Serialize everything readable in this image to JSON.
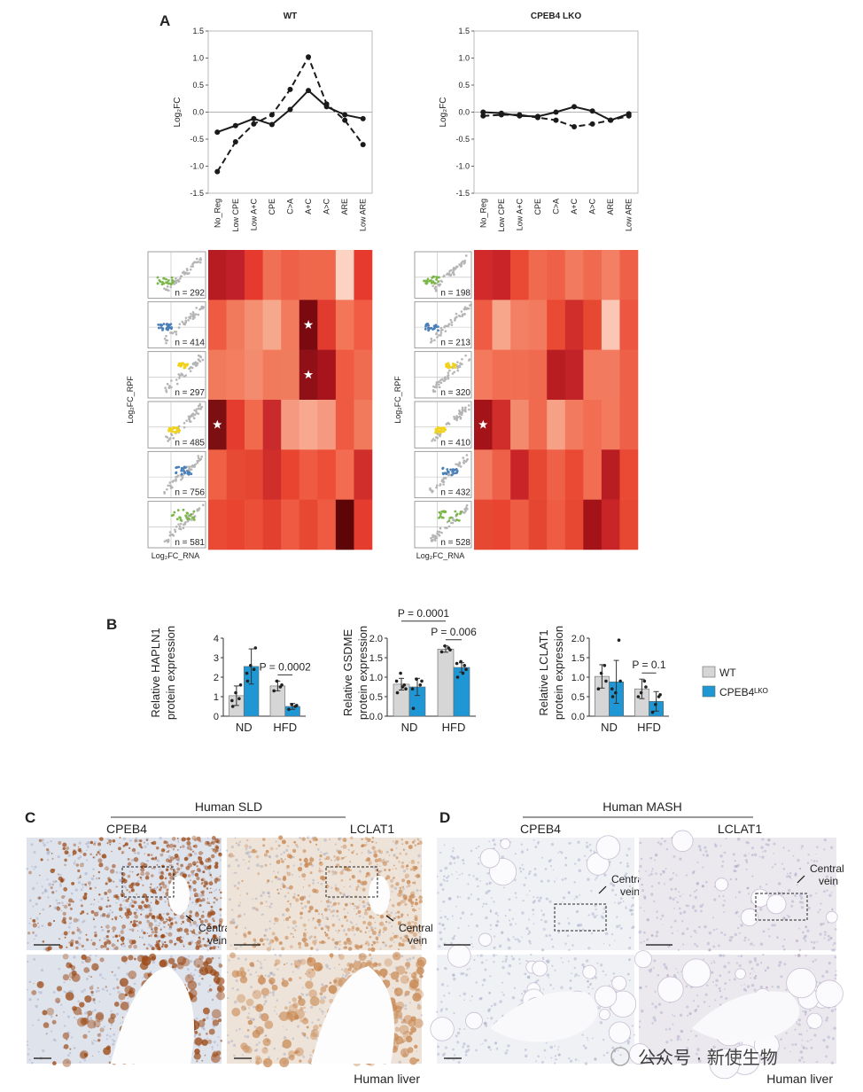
{
  "panel_labels": [
    "A",
    "B",
    "C",
    "D"
  ],
  "chart_data": [
    {
      "type": "line",
      "title": "WT",
      "y_label": "Log₂FC",
      "categories": [
        "No_Reg",
        "Low CPE",
        "Low A+C",
        "CPE",
        "C>A",
        "A+C",
        "A>C",
        "ARE",
        "Low ARE"
      ],
      "ylim": [
        -1.5,
        1.5
      ],
      "yticks": [
        -1.5,
        {
          "value": -1.0,
          "label": "-1.0"
        },
        -0.5,
        {
          "value": 0.0,
          "label": "0.0"
        },
        0.5,
        {
          "value": 1.0,
          "label": "1.0"
        },
        1.5
      ],
      "reference_line": 0,
      "series": [
        {
          "color": "#1a1a1a",
          "dash": false,
          "values": [
            -0.37,
            -0.25,
            -0.12,
            -0.23,
            0.05,
            0.4,
            0.1,
            -0.05,
            -0.12
          ]
        },
        {
          "color": "#1a1a1a",
          "dash": true,
          "values": [
            -1.1,
            -0.55,
            -0.22,
            -0.05,
            0.42,
            1.02,
            0.15,
            -0.15,
            -0.6
          ]
        }
      ]
    },
    {
      "type": "line",
      "title": "CPEB4 LKO",
      "y_label": "Log₂FC",
      "categories": [
        "No_Reg",
        "Low CPE",
        "Low A+C",
        "CPE",
        "C>A",
        "A+C",
        "A>C",
        "ARE",
        "Low ARE"
      ],
      "ylim": [
        -1.5,
        1.5
      ],
      "yticks": [
        -1.5,
        {
          "value": -1.0,
          "label": "-1.0"
        },
        -0.5,
        {
          "value": 0.0,
          "label": "0.0"
        },
        0.5,
        {
          "value": 1.0,
          "label": "1.0"
        },
        1.5
      ],
      "reference_line": 0,
      "series": [
        {
          "color": "#1a1a1a",
          "dash": false,
          "values": [
            0.0,
            -0.02,
            -0.07,
            -0.08,
            0.0,
            0.1,
            0.02,
            -0.15,
            -0.03
          ]
        },
        {
          "color": "#1a1a1a",
          "dash": true,
          "values": [
            -0.07,
            -0.05,
            -0.05,
            -0.1,
            -0.15,
            -0.27,
            -0.22,
            -0.15,
            -0.07
          ]
        }
      ]
    },
    {
      "type": "heatmap",
      "y_label": "Log₂FC_RPF",
      "x_label": "Log₂FC_RNA",
      "row_labels": [
        "n = 292",
        "n = 414",
        "n = 297",
        "n = 485",
        "n = 756",
        "n = 581"
      ],
      "row_colors": [
        "#7ab648",
        "#4a7fb8",
        "#f1d21b",
        "#f1d21b",
        "#4a7fb8",
        "#7ab648"
      ],
      "colors": [
        [
          "#b71c22",
          "#c0202a",
          "#e63a2e",
          "#f07055",
          "#ee6048",
          "#ef684e",
          "#f0684c",
          "#fcd2c2",
          "#e53a2d"
        ],
        [
          "#ef5b42",
          "#f27a5c",
          "#f48f72",
          "#f6a88c",
          "#f27a5d",
          "#7b0a10",
          "#e13a2e",
          "#f37659",
          "#f05c44"
        ],
        [
          "#f27a5c",
          "#f47e60",
          "#f38c6e",
          "#f27a5c",
          "#f07c5e",
          "#8f1016",
          "#a8141b",
          "#ef5a42",
          "#f06c50"
        ],
        [
          "#7c0f12",
          "#e43c2f",
          "#f26a4e",
          "#c92a2c",
          "#f59a80",
          "#f7a88e",
          "#f59a80",
          "#ef5a42",
          "#f27a5c"
        ],
        [
          "#ef6044",
          "#e64a34",
          "#e54632",
          "#cf2e2b",
          "#e9442f",
          "#ef5a42",
          "#ec4e37",
          "#f36c52",
          "#cf2e2b"
        ],
        [
          "#ea4a34",
          "#e8442f",
          "#ec4f37",
          "#e3402f",
          "#ef5a42",
          "#e64832",
          "#ef5a42",
          "#5e0508",
          "#e43d2f"
        ]
      ],
      "stars": [
        [
          1,
          5
        ],
        [
          2,
          5
        ],
        [
          3,
          0
        ]
      ]
    },
    {
      "type": "heatmap",
      "y_label": "Log₂FC_RPF",
      "x_label": "Log₂FC_RNA",
      "row_labels": [
        "n = 198",
        "n = 213",
        "n = 320",
        "n = 410",
        "n = 432",
        "n = 528"
      ],
      "row_colors": [
        "#7ab648",
        "#4a7fb8",
        "#f1d21b",
        "#f1d21b",
        "#4a7fb8",
        "#7ab648"
      ],
      "colors": [
        [
          "#d22a2b",
          "#c92428",
          "#ea4a34",
          "#f06a4f",
          "#ee6048",
          "#f27b5f",
          "#f06a4f",
          "#f38065",
          "#ee6048"
        ],
        [
          "#ee5c43",
          "#f7a58b",
          "#f38065",
          "#f27b5f",
          "#ea4a34",
          "#cf2e2b",
          "#e64832",
          "#fbc6b4",
          "#ed5640"
        ],
        [
          "#f37a5d",
          "#f16e52",
          "#f16e52",
          "#f06a4f",
          "#b81d22",
          "#c12328",
          "#f37a5d",
          "#f27b5f",
          "#ee6048"
        ],
        [
          "#a31318",
          "#cf2e2b",
          "#f38a6e",
          "#f06a4f",
          "#f6a085",
          "#f27b5f",
          "#f16e52",
          "#f37a5d",
          "#ee6048"
        ],
        [
          "#f27b5f",
          "#ee6048",
          "#c92428",
          "#e64832",
          "#ee6048",
          "#ea4a34",
          "#f16e52",
          "#b81d22",
          "#ea4a34"
        ],
        [
          "#e64832",
          "#e8442f",
          "#ee5c43",
          "#e54632",
          "#ee5c43",
          "#e64832",
          "#a31318",
          "#c92428",
          "#e64832"
        ]
      ],
      "stars": [
        [
          3,
          0
        ]
      ]
    },
    {
      "type": "bar",
      "y_label": [
        "Relative HAPLN1",
        "protein expression"
      ],
      "categories": [
        "ND",
        "HFD"
      ],
      "ylim": [
        0,
        4
      ],
      "yticks": [
        0,
        1,
        2,
        3,
        4
      ],
      "series": [
        {
          "name": "WT",
          "color": "#d6d6d6",
          "values": [
            1.05,
            1.55
          ],
          "errors": [
            0.5,
            0.25
          ],
          "points": [
            [
              0.5,
              0.9,
              1.2,
              1.6,
              0.8
            ],
            [
              1.3,
              1.5,
              1.8,
              1.6
            ]
          ]
        },
        {
          "name": "CPEB4ᴸᴷᴼ",
          "color": "#1e97d4",
          "values": [
            2.55,
            0.5
          ],
          "errors": [
            0.9,
            0.15
          ],
          "points": [
            [
              1.8,
              2.4,
              2.6,
              3.5,
              2.2
            ],
            [
              0.35,
              0.5,
              0.6,
              0.55
            ]
          ]
        }
      ],
      "annotations": [
        {
          "text": "P = 0.0002",
          "between": [
            [
              1,
              0
            ],
            [
              1,
              1
            ]
          ]
        }
      ]
    },
    {
      "type": "bar",
      "y_label": [
        "Relative GSDME",
        "protein expression"
      ],
      "categories": [
        "ND",
        "HFD"
      ],
      "ylim": [
        0,
        2.0
      ],
      "yticks": [
        {
          "value": 0,
          "label": "0.0"
        },
        0.5,
        {
          "value": 1.0,
          "label": "1.0"
        },
        1.5,
        {
          "value": 2.0,
          "label": "2.0"
        }
      ],
      "series": [
        {
          "color": "#d6d6d6",
          "values": [
            0.82,
            1.72
          ],
          "errors": [
            0.15,
            0.08
          ],
          "points": [
            [
              0.6,
              0.8,
              1.1,
              0.7,
              0.9,
              0.75
            ],
            [
              1.65,
              1.75,
              1.8,
              1.7
            ]
          ]
        },
        {
          "color": "#1e97d4",
          "values": [
            0.75,
            1.25
          ],
          "errors": [
            0.22,
            0.12
          ],
          "points": [
            [
              0.2,
              0.8,
              0.95,
              0.9,
              0.7
            ],
            [
              1.0,
              1.3,
              1.4,
              1.2,
              1.35,
              1.1
            ]
          ]
        }
      ],
      "annotations": [
        {
          "text": "P = 0.006",
          "between": [
            [
              1,
              0
            ],
            [
              1,
              1
            ]
          ]
        },
        {
          "text": "P = 0.0001",
          "between": [
            [
              0,
              0
            ],
            [
              1,
              0
            ]
          ]
        }
      ]
    },
    {
      "type": "bar",
      "y_label": [
        "Relative LCLAT1",
        "protein expression"
      ],
      "categories": [
        "ND",
        "HFD"
      ],
      "ylim": [
        0,
        2.0
      ],
      "yticks": [
        {
          "value": 0,
          "label": "0.0"
        },
        0.5,
        {
          "value": 1.0,
          "label": "1.0"
        },
        1.5,
        {
          "value": 2.0,
          "label": "2.0"
        }
      ],
      "series": [
        {
          "color": "#d6d6d6",
          "values": [
            1.02,
            0.7
          ],
          "errors": [
            0.3,
            0.25
          ],
          "points": [
            [
              0.7,
              1.3,
              1.1,
              0.9
            ],
            [
              0.5,
              0.9,
              0.6,
              0.75
            ]
          ]
        },
        {
          "color": "#1e97d4",
          "values": [
            0.88,
            0.38
          ],
          "errors": [
            0.55,
            0.25
          ],
          "points": [
            [
              0.5,
              1.95,
              0.6,
              0.9,
              0.7
            ],
            [
              0.1,
              0.5,
              0.3,
              0.55
            ]
          ]
        }
      ],
      "annotations": [
        {
          "text": "P = 0.1",
          "between": [
            [
              1,
              0
            ],
            [
              1,
              1
            ]
          ]
        }
      ]
    }
  ],
  "histology": [
    {
      "title": "Human SLD",
      "columns": [
        "CPEB4",
        "LCLAT1"
      ],
      "callouts": [
        [
          "Central",
          "vein"
        ],
        [
          "Central",
          "vein"
        ]
      ],
      "footer": "Human liver"
    },
    {
      "title": "Human MASH",
      "columns": [
        "CPEB4",
        "LCLAT1"
      ],
      "callouts": [
        [
          "Central",
          "vein"
        ],
        [
          "Central",
          "vein"
        ]
      ],
      "footer": "Human liver"
    }
  ],
  "watermark": "公众号 · 新使生物"
}
